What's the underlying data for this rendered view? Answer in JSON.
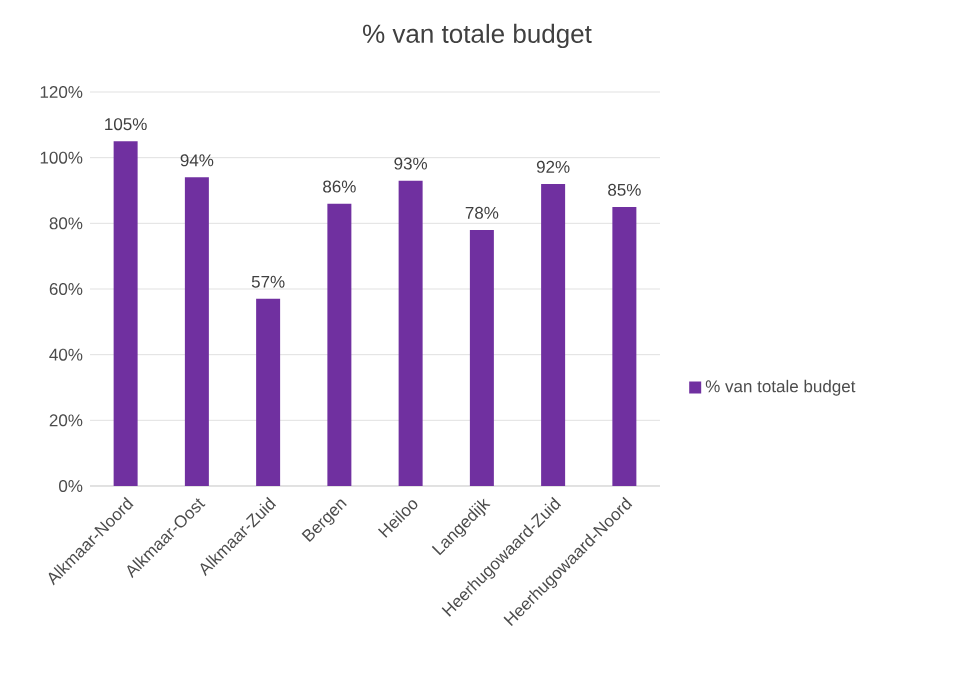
{
  "chart_data": {
    "type": "bar",
    "title": "% van totale budget",
    "categories": [
      "Alkmaar-Noord",
      "Alkmaar-Oost",
      "Alkmaar-Zuid",
      "Bergen",
      "Heiloo",
      "Langedijk",
      "Heerhugowaard-Zuid",
      "Heerhugowaard-Noord"
    ],
    "series": [
      {
        "name": "% van totale budget",
        "color": "#7030a0",
        "values": [
          105,
          94,
          57,
          86,
          93,
          78,
          92,
          85
        ],
        "value_labels": [
          "105%",
          "94%",
          "57%",
          "86%",
          "93%",
          "78%",
          "92%",
          "85%"
        ]
      }
    ],
    "ylim": [
      0,
      120
    ],
    "yticks": [
      {
        "value": 0,
        "label": "0%"
      },
      {
        "value": 20,
        "label": "20%"
      },
      {
        "value": 40,
        "label": "40%"
      },
      {
        "value": 60,
        "label": "60%"
      },
      {
        "value": 80,
        "label": "80%"
      },
      {
        "value": 100,
        "label": "100%"
      },
      {
        "value": 120,
        "label": "120%"
      }
    ],
    "grid": "y",
    "legend": "right"
  }
}
